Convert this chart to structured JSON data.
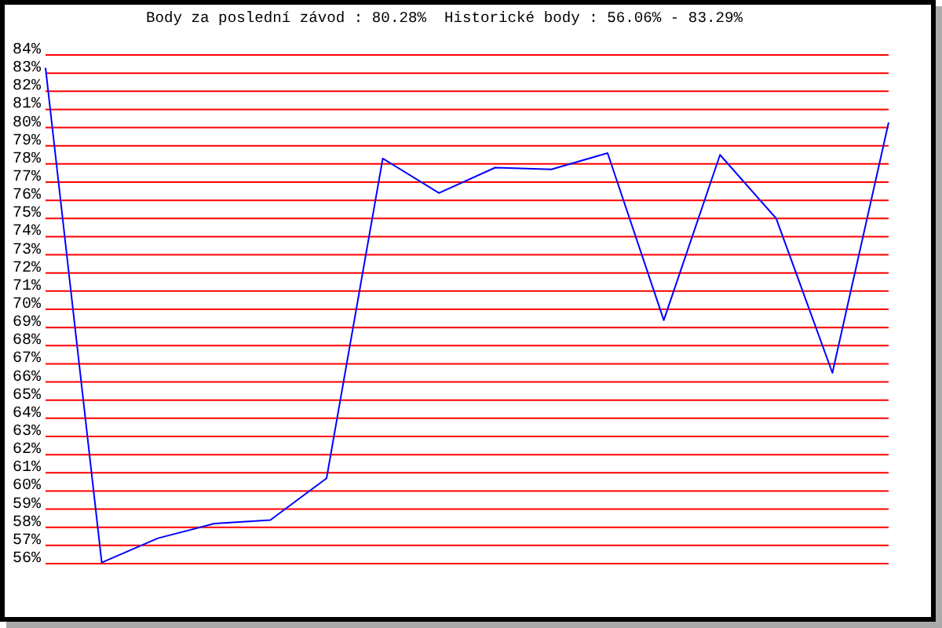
{
  "chart_data": {
    "type": "line",
    "title": "Body za poslední závod : 80.28%  Historické body : 56.06% - 83.29%",
    "categories": [
      null,
      null,
      null,
      null,
      null,
      null,
      null,
      null,
      null,
      null,
      null,
      null,
      null,
      null,
      null,
      null
    ],
    "series": [
      {
        "color": "#0000ff",
        "values": [
          83.29,
          56.06,
          57.4,
          58.2,
          58.4,
          60.7,
          78.3,
          76.4,
          77.8,
          77.7,
          78.6,
          69.4,
          78.5,
          75.0,
          66.5,
          80.28
        ]
      }
    ],
    "ylim": [
      56,
      84
    ],
    "yticks": [
      {
        "value": 56,
        "label": "56%"
      },
      {
        "value": 57,
        "label": "57%"
      },
      {
        "value": 58,
        "label": "58%"
      },
      {
        "value": 59,
        "label": "59%"
      },
      {
        "value": 60,
        "label": "60%"
      },
      {
        "value": 61,
        "label": "61%"
      },
      {
        "value": 62,
        "label": "62%"
      },
      {
        "value": 63,
        "label": "63%"
      },
      {
        "value": 64,
        "label": "64%"
      },
      {
        "value": 65,
        "label": "65%"
      },
      {
        "value": 66,
        "label": "66%"
      },
      {
        "value": 67,
        "label": "67%"
      },
      {
        "value": 68,
        "label": "68%"
      },
      {
        "value": 69,
        "label": "69%"
      },
      {
        "value": 70,
        "label": "70%"
      },
      {
        "value": 71,
        "label": "71%"
      },
      {
        "value": 72,
        "label": "72%"
      },
      {
        "value": 73,
        "label": "73%"
      },
      {
        "value": 74,
        "label": "74%"
      },
      {
        "value": 75,
        "label": "75%"
      },
      {
        "value": 76,
        "label": "76%"
      },
      {
        "value": 77,
        "label": "77%"
      },
      {
        "value": 78,
        "label": "78%"
      },
      {
        "value": 79,
        "label": "79%"
      },
      {
        "value": 80,
        "label": "80%"
      },
      {
        "value": 81,
        "label": "81%"
      },
      {
        "value": 82,
        "label": "82%"
      },
      {
        "value": 83,
        "label": "83%"
      },
      {
        "value": 84,
        "label": "84%"
      }
    ],
    "grid": "y",
    "tick_labels": "y"
  }
}
